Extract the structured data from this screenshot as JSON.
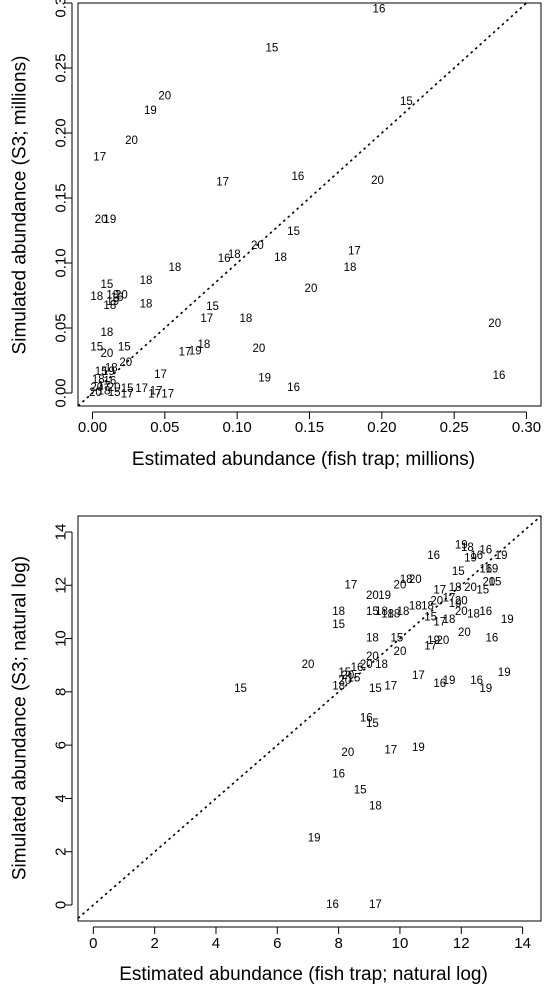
{
  "chart_data": [
    {
      "type": "scatter",
      "id": "top",
      "xlabel": "Estimated abundance (fish trap; millions)",
      "ylabel": "Simulated abundance (S3; millions)",
      "xlim": [
        -0.01,
        0.31
      ],
      "ylim": [
        -0.01,
        0.3
      ],
      "xticks": [
        0.0,
        0.05,
        0.1,
        0.15,
        0.2,
        0.25,
        0.3
      ],
      "xtick_labels": [
        "0.00",
        "0.05",
        "0.10",
        "0.15",
        "0.20",
        "0.25",
        "0.30"
      ],
      "yticks": [
        0.0,
        0.05,
        0.1,
        0.15,
        0.2,
        0.25,
        0.3
      ],
      "ytick_labels": [
        "0.00",
        "0.05",
        "0.10",
        "0.15",
        "0.20",
        "0.25",
        "0.30"
      ],
      "identity_line": true,
      "points": [
        {
          "x": 0.198,
          "y": 0.295,
          "label": "16"
        },
        {
          "x": 0.124,
          "y": 0.265,
          "label": "15"
        },
        {
          "x": 0.217,
          "y": 0.224,
          "label": "15"
        },
        {
          "x": 0.05,
          "y": 0.228,
          "label": "20"
        },
        {
          "x": 0.04,
          "y": 0.217,
          "label": "19"
        },
        {
          "x": 0.027,
          "y": 0.194,
          "label": "20"
        },
        {
          "x": 0.005,
          "y": 0.181,
          "label": "17"
        },
        {
          "x": 0.09,
          "y": 0.162,
          "label": "17"
        },
        {
          "x": 0.142,
          "y": 0.166,
          "label": "16"
        },
        {
          "x": 0.197,
          "y": 0.163,
          "label": "20"
        },
        {
          "x": 0.006,
          "y": 0.133,
          "label": "20"
        },
        {
          "x": 0.012,
          "y": 0.133,
          "label": "19"
        },
        {
          "x": 0.139,
          "y": 0.124,
          "label": "15"
        },
        {
          "x": 0.114,
          "y": 0.113,
          "label": "20"
        },
        {
          "x": 0.098,
          "y": 0.106,
          "label": "18"
        },
        {
          "x": 0.091,
          "y": 0.103,
          "label": "16"
        },
        {
          "x": 0.13,
          "y": 0.104,
          "label": "18"
        },
        {
          "x": 0.181,
          "y": 0.109,
          "label": "17"
        },
        {
          "x": 0.057,
          "y": 0.096,
          "label": "18"
        },
        {
          "x": 0.178,
          "y": 0.096,
          "label": "18"
        },
        {
          "x": 0.037,
          "y": 0.086,
          "label": "18"
        },
        {
          "x": 0.151,
          "y": 0.08,
          "label": "20"
        },
        {
          "x": 0.01,
          "y": 0.083,
          "label": "15"
        },
        {
          "x": 0.003,
          "y": 0.074,
          "label": "18"
        },
        {
          "x": 0.014,
          "y": 0.075,
          "label": "18"
        },
        {
          "x": 0.02,
          "y": 0.075,
          "label": "20"
        },
        {
          "x": 0.017,
          "y": 0.073,
          "label": "16"
        },
        {
          "x": 0.037,
          "y": 0.068,
          "label": "18"
        },
        {
          "x": 0.014,
          "y": 0.07,
          "label": "19"
        },
        {
          "x": 0.012,
          "y": 0.067,
          "label": "18"
        },
        {
          "x": 0.083,
          "y": 0.066,
          "label": "15"
        },
        {
          "x": 0.079,
          "y": 0.057,
          "label": "17"
        },
        {
          "x": 0.106,
          "y": 0.057,
          "label": "18"
        },
        {
          "x": 0.01,
          "y": 0.046,
          "label": "18"
        },
        {
          "x": 0.003,
          "y": 0.035,
          "label": "15"
        },
        {
          "x": 0.022,
          "y": 0.035,
          "label": "15"
        },
        {
          "x": 0.077,
          "y": 0.037,
          "label": "18"
        },
        {
          "x": 0.071,
          "y": 0.032,
          "label": "19"
        },
        {
          "x": 0.064,
          "y": 0.031,
          "label": "17"
        },
        {
          "x": 0.115,
          "y": 0.034,
          "label": "20"
        },
        {
          "x": 0.01,
          "y": 0.03,
          "label": "20"
        },
        {
          "x": 0.023,
          "y": 0.023,
          "label": "20"
        },
        {
          "x": 0.013,
          "y": 0.019,
          "label": "18"
        },
        {
          "x": 0.011,
          "y": 0.016,
          "label": "19"
        },
        {
          "x": 0.006,
          "y": 0.016,
          "label": "15"
        },
        {
          "x": 0.278,
          "y": 0.053,
          "label": "20"
        },
        {
          "x": 0.281,
          "y": 0.013,
          "label": "16"
        },
        {
          "x": 0.119,
          "y": 0.011,
          "label": "19"
        },
        {
          "x": 0.139,
          "y": 0.004,
          "label": "16"
        },
        {
          "x": 0.047,
          "y": 0.014,
          "label": "17"
        },
        {
          "x": 0.004,
          "y": 0.01,
          "label": "18"
        },
        {
          "x": 0.012,
          "y": 0.009,
          "label": "16"
        },
        {
          "x": 0.003,
          "y": 0.004,
          "label": "20"
        },
        {
          "x": 0.008,
          "y": 0.005,
          "label": "17"
        },
        {
          "x": 0.015,
          "y": 0.004,
          "label": "20"
        },
        {
          "x": 0.002,
          "y": 0.0,
          "label": "20"
        },
        {
          "x": 0.008,
          "y": 0.001,
          "label": "18"
        },
        {
          "x": 0.015,
          "y": 0.0,
          "label": "15"
        },
        {
          "x": 0.024,
          "y": 0.003,
          "label": "15"
        },
        {
          "x": 0.034,
          "y": 0.003,
          "label": "17"
        },
        {
          "x": 0.024,
          "y": -0.001,
          "label": "17"
        },
        {
          "x": 0.043,
          "y": -0.001,
          "label": "17"
        },
        {
          "x": 0.052,
          "y": -0.001,
          "label": "17"
        },
        {
          "x": 0.044,
          "y": 0.001,
          "label": "17"
        }
      ]
    },
    {
      "type": "scatter",
      "id": "bottom",
      "xlabel": "Estimated abundance (fish trap; natural log)",
      "ylabel": "Simulated abundance (S3; natural log)",
      "xlim": [
        -0.5,
        14.6
      ],
      "ylim": [
        -0.6,
        14.6
      ],
      "xticks": [
        0,
        2,
        4,
        6,
        8,
        10,
        12,
        14
      ],
      "xtick_labels": [
        "0",
        "2",
        "4",
        "6",
        "8",
        "10",
        "12",
        "14"
      ],
      "yticks": [
        0,
        2,
        4,
        6,
        8,
        10,
        12,
        14
      ],
      "ytick_labels": [
        "0",
        "2",
        "4",
        "6",
        "8",
        "10",
        "12",
        "14"
      ],
      "identity_line": true,
      "points": [
        {
          "x": 12.0,
          "y": 13.5,
          "label": "19"
        },
        {
          "x": 12.2,
          "y": 13.4,
          "label": "18"
        },
        {
          "x": 12.8,
          "y": 13.3,
          "label": "16"
        },
        {
          "x": 12.5,
          "y": 13.1,
          "label": "16"
        },
        {
          "x": 12.3,
          "y": 13.0,
          "label": "19"
        },
        {
          "x": 13.3,
          "y": 13.1,
          "label": "19"
        },
        {
          "x": 11.1,
          "y": 13.1,
          "label": "16"
        },
        {
          "x": 12.8,
          "y": 12.6,
          "label": "16"
        },
        {
          "x": 13.0,
          "y": 12.6,
          "label": "19"
        },
        {
          "x": 11.9,
          "y": 12.5,
          "label": "15"
        },
        {
          "x": 10.2,
          "y": 12.2,
          "label": "18"
        },
        {
          "x": 10.5,
          "y": 12.2,
          "label": "20"
        },
        {
          "x": 10.0,
          "y": 12.0,
          "label": "20"
        },
        {
          "x": 8.4,
          "y": 12.0,
          "label": "17"
        },
        {
          "x": 12.9,
          "y": 12.1,
          "label": "20"
        },
        {
          "x": 13.1,
          "y": 12.1,
          "label": "15"
        },
        {
          "x": 12.7,
          "y": 11.8,
          "label": "15"
        },
        {
          "x": 12.3,
          "y": 11.9,
          "label": "20"
        },
        {
          "x": 11.8,
          "y": 11.9,
          "label": "18"
        },
        {
          "x": 11.3,
          "y": 11.8,
          "label": "17"
        },
        {
          "x": 9.1,
          "y": 11.6,
          "label": "20"
        },
        {
          "x": 9.5,
          "y": 11.6,
          "label": "19"
        },
        {
          "x": 11.6,
          "y": 11.5,
          "label": "17"
        },
        {
          "x": 11.8,
          "y": 11.3,
          "label": "19"
        },
        {
          "x": 12.0,
          "y": 11.4,
          "label": "20"
        },
        {
          "x": 11.2,
          "y": 11.4,
          "label": "20"
        },
        {
          "x": 10.9,
          "y": 11.2,
          "label": "18"
        },
        {
          "x": 10.5,
          "y": 11.2,
          "label": "18"
        },
        {
          "x": 10.1,
          "y": 11.0,
          "label": "18"
        },
        {
          "x": 9.1,
          "y": 11.0,
          "label": "15"
        },
        {
          "x": 9.4,
          "y": 11.0,
          "label": "18"
        },
        {
          "x": 9.6,
          "y": 10.9,
          "label": "18"
        },
        {
          "x": 9.8,
          "y": 10.9,
          "label": "18"
        },
        {
          "x": 8.0,
          "y": 11.0,
          "label": "18"
        },
        {
          "x": 11.0,
          "y": 10.8,
          "label": "15"
        },
        {
          "x": 11.3,
          "y": 10.6,
          "label": "17"
        },
        {
          "x": 11.6,
          "y": 10.7,
          "label": "18"
        },
        {
          "x": 12.0,
          "y": 11.0,
          "label": "20"
        },
        {
          "x": 12.8,
          "y": 11.0,
          "label": "16"
        },
        {
          "x": 12.4,
          "y": 10.9,
          "label": "18"
        },
        {
          "x": 13.5,
          "y": 10.7,
          "label": "19"
        },
        {
          "x": 9.1,
          "y": 10.0,
          "label": "18"
        },
        {
          "x": 8.0,
          "y": 10.5,
          "label": "15"
        },
        {
          "x": 12.1,
          "y": 10.2,
          "label": "20"
        },
        {
          "x": 13.0,
          "y": 10.0,
          "label": "16"
        },
        {
          "x": 11.1,
          "y": 9.9,
          "label": "19"
        },
        {
          "x": 11.4,
          "y": 9.9,
          "label": "20"
        },
        {
          "x": 11.0,
          "y": 9.7,
          "label": "17"
        },
        {
          "x": 9.9,
          "y": 10.0,
          "label": "15"
        },
        {
          "x": 9.1,
          "y": 9.3,
          "label": "20"
        },
        {
          "x": 10.0,
          "y": 9.5,
          "label": "20"
        },
        {
          "x": 9.4,
          "y": 9.0,
          "label": "18"
        },
        {
          "x": 8.6,
          "y": 8.9,
          "label": "16"
        },
        {
          "x": 8.9,
          "y": 9.0,
          "label": "20"
        },
        {
          "x": 8.2,
          "y": 8.7,
          "label": "15"
        },
        {
          "x": 8.5,
          "y": 8.5,
          "label": "15"
        },
        {
          "x": 8.3,
          "y": 8.6,
          "label": "20"
        },
        {
          "x": 7.0,
          "y": 9.0,
          "label": "20"
        },
        {
          "x": 10.6,
          "y": 8.6,
          "label": "17"
        },
        {
          "x": 11.6,
          "y": 8.4,
          "label": "19"
        },
        {
          "x": 12.5,
          "y": 8.4,
          "label": "16"
        },
        {
          "x": 13.4,
          "y": 8.7,
          "label": "19"
        },
        {
          "x": 8.2,
          "y": 8.4,
          "label": "20"
        },
        {
          "x": 8.0,
          "y": 8.2,
          "label": "18"
        },
        {
          "x": 9.2,
          "y": 8.1,
          "label": "15"
        },
        {
          "x": 9.7,
          "y": 8.2,
          "label": "17"
        },
        {
          "x": 11.3,
          "y": 8.3,
          "label": "16"
        },
        {
          "x": 12.8,
          "y": 8.1,
          "label": "19"
        },
        {
          "x": 4.8,
          "y": 8.1,
          "label": "15"
        },
        {
          "x": 8.9,
          "y": 7.0,
          "label": "16"
        },
        {
          "x": 9.1,
          "y": 6.8,
          "label": "15"
        },
        {
          "x": 10.6,
          "y": 5.9,
          "label": "19"
        },
        {
          "x": 9.7,
          "y": 5.8,
          "label": "17"
        },
        {
          "x": 8.3,
          "y": 5.7,
          "label": "20"
        },
        {
          "x": 8.0,
          "y": 4.9,
          "label": "16"
        },
        {
          "x": 8.7,
          "y": 4.3,
          "label": "15"
        },
        {
          "x": 9.2,
          "y": 3.7,
          "label": "18"
        },
        {
          "x": 7.2,
          "y": 2.5,
          "label": "19"
        },
        {
          "x": 7.8,
          "y": 0.0,
          "label": "16"
        },
        {
          "x": 9.2,
          "y": 0.0,
          "label": "17"
        }
      ]
    }
  ]
}
